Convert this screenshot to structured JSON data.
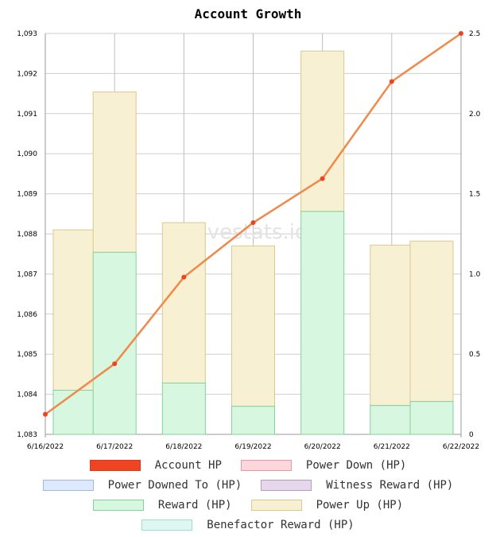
{
  "chart_data": {
    "type": "bar",
    "title": "Account Growth",
    "watermark": "hivestats.io",
    "categories": [
      "6/16/2022",
      "6/17/2022",
      "6/18/2022",
      "6/19/2022",
      "6/20/2022",
      "6/21/2022",
      "6/22/2022"
    ],
    "y_left": {
      "min": 1083,
      "max": 1093,
      "ticks": [
        "1,083",
        "1,084",
        "1,085",
        "1,086",
        "1,087",
        "1,088",
        "1,089",
        "1,090",
        "1,091",
        "1,092",
        "1,093"
      ]
    },
    "y_right": {
      "min": 0,
      "max": 2.5,
      "ticks": [
        "0",
        "0.5",
        "1.0",
        "1.5",
        "2.0",
        "2.5"
      ]
    },
    "grid": true,
    "legend_position": "bottom",
    "series": [
      {
        "name": "Account HP",
        "type": "line",
        "axis": "left",
        "color": "#ef8a4a",
        "marker_color": "#ee4422",
        "values": [
          1083.5,
          1084.76,
          1086.92,
          1088.28,
          1089.38,
          1091.8,
          1093.0
        ]
      },
      {
        "name": "Power Down (HP)",
        "type": "bar",
        "axis": "right",
        "color": "#ffd6dc",
        "border": "#e39aa6",
        "values": [
          0,
          0,
          0,
          0,
          0,
          0,
          0
        ]
      },
      {
        "name": "Power Downed To (HP)",
        "type": "bar",
        "axis": "right",
        "color": "#dce9ff",
        "border": "#9fb8e0",
        "values": [
          0,
          0,
          0,
          0,
          0,
          0,
          0
        ]
      },
      {
        "name": "Witness Reward (HP)",
        "type": "bar",
        "axis": "right",
        "color": "#e6d8ea",
        "border": "#b79cc0",
        "values": [
          0,
          0,
          0,
          0,
          0,
          0,
          0
        ]
      },
      {
        "name": "Reward (HP)",
        "type": "bar",
        "axis": "right",
        "stack": "a",
        "color": "#d7f7e0",
        "border": "#86cf9d",
        "values": [
          0.275,
          1.135,
          0.32,
          0.175,
          1.39,
          0.18,
          0.205
        ]
      },
      {
        "name": "Power Up (HP)",
        "type": "bar",
        "axis": "right",
        "stack": "a",
        "color": "#f8f0d2",
        "border": "#d9c98e",
        "values": [
          1.0,
          1.0,
          1.0,
          1.0,
          1.0,
          1.0,
          1.0
        ]
      },
      {
        "name": "Benefactor Reward (HP)",
        "type": "bar",
        "axis": "right",
        "color": "#ddf7f1",
        "border": "#9fdccd",
        "values": [
          0,
          0,
          0,
          0,
          0,
          0,
          0
        ]
      }
    ]
  }
}
